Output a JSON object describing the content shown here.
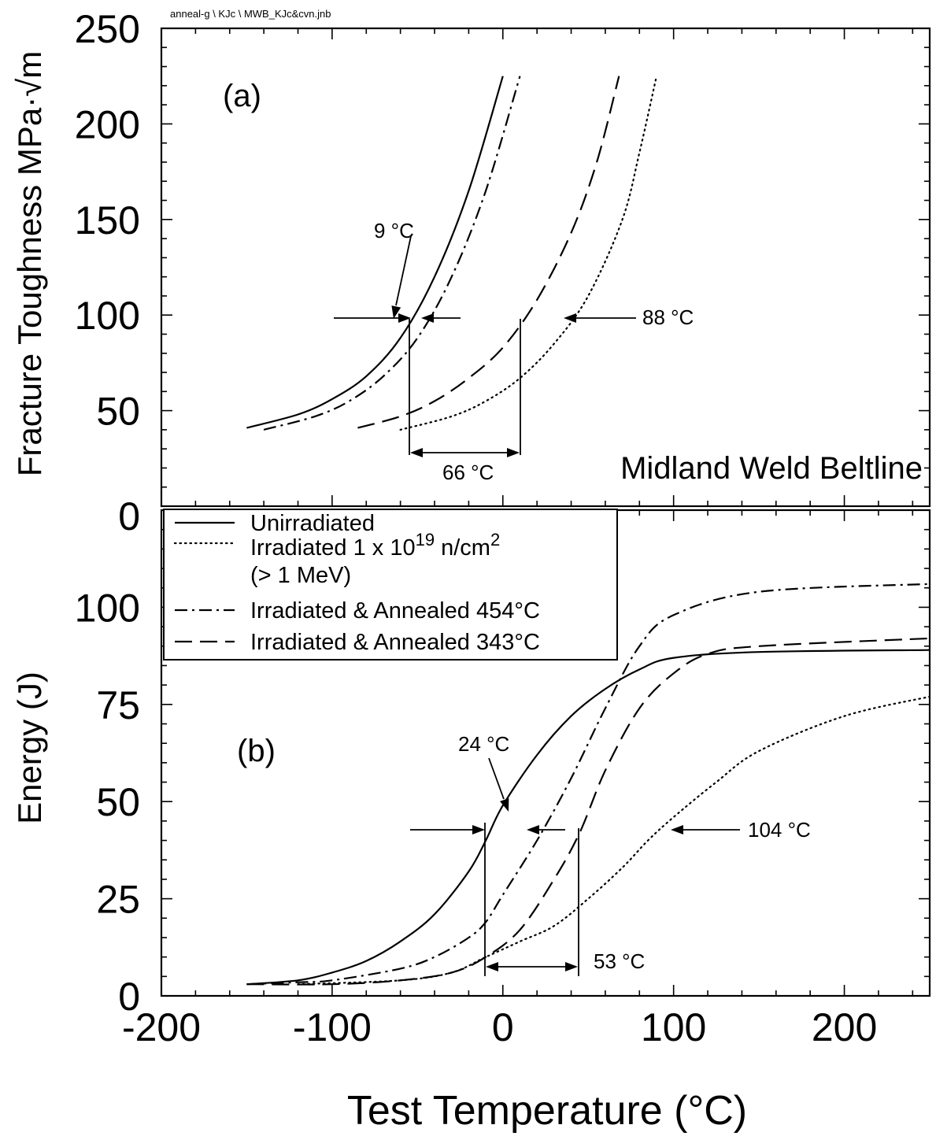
{
  "file_tag": "anneal-g \\ KJc \\ MWB_KJc&cvn.jnb",
  "xlabel": "Test Temperature  (°C)",
  "x_ticks": [
    -200,
    -100,
    0,
    100,
    200
  ],
  "legend": {
    "entries": [
      {
        "series": "unirradiated",
        "label": "Unirradiated"
      },
      {
        "series": "irradiated",
        "label_parts": [
          "Irradiated 1 x 10",
          "19",
          " n/cm",
          "2"
        ],
        "label_line2": "(> 1 MeV)"
      },
      {
        "series": "annealed_454",
        "label": "Irradiated & Annealed 454°C"
      },
      {
        "series": "annealed_343",
        "label": "Irradiated & Annealed 343°C"
      }
    ]
  },
  "chart_data": [
    {
      "panel": "(a)",
      "type": "line",
      "title": "Midland Weld Beltline",
      "panel_label": "(a)",
      "xlabel": "Test Temperature  (°C)",
      "ylabel": "Fracture Toughness MPa·√m",
      "xlim": [
        -200,
        250
      ],
      "ylim": [
        0,
        250
      ],
      "y_ticks": [
        0,
        50,
        100,
        150,
        200,
        250
      ],
      "grid": false,
      "series": [
        {
          "id": "unirradiated",
          "style": "solid",
          "x": [
            -150,
            -120,
            -100,
            -80,
            -60,
            -40,
            -20,
            0
          ],
          "y": [
            41,
            48,
            56,
            68,
            88,
            120,
            165,
            225
          ]
        },
        {
          "id": "annealed_454",
          "style": "dashdot",
          "x": [
            -140,
            -110,
            -90,
            -70,
            -50,
            -30,
            -10,
            10
          ],
          "y": [
            40,
            47,
            55,
            68,
            88,
            120,
            165,
            225
          ]
        },
        {
          "id": "annealed_343",
          "style": "dashed",
          "x": [
            -85,
            -60,
            -40,
            -20,
            0,
            20,
            40,
            55,
            68
          ],
          "y": [
            41,
            47,
            55,
            67,
            83,
            108,
            143,
            180,
            225
          ]
        },
        {
          "id": "irradiated",
          "style": "dotted",
          "x": [
            -60,
            -30,
            -10,
            10,
            30,
            50,
            70,
            80,
            90
          ],
          "y": [
            40,
            47,
            55,
            67,
            85,
            110,
            150,
            185,
            225
          ]
        }
      ],
      "annotations": [
        {
          "text": "9 °C"
        },
        {
          "text": "88 °C"
        },
        {
          "text": "66 °C"
        }
      ]
    },
    {
      "panel": "(b)",
      "type": "line",
      "panel_label": "(b)",
      "xlabel": "Test Temperature  (°C)",
      "ylabel": "Energy (J)",
      "xlim": [
        -200,
        250
      ],
      "ylim": [
        0,
        125
      ],
      "y_ticks": [
        0,
        25,
        50,
        75,
        100
      ],
      "grid": false,
      "series": [
        {
          "id": "unirradiated",
          "style": "solid",
          "x": [
            -150,
            -120,
            -100,
            -80,
            -60,
            -40,
            -20,
            -10,
            0,
            20,
            40,
            60,
            80,
            100,
            150,
            250
          ],
          "y": [
            3,
            4,
            6,
            9,
            14,
            21,
            32,
            40,
            49,
            62,
            72,
            79,
            84,
            87,
            88.5,
            89
          ]
        },
        {
          "id": "annealed_454",
          "style": "dashdot",
          "x": [
            -150,
            -120,
            -100,
            -60,
            -40,
            -20,
            -10,
            0,
            20,
            40,
            60,
            80,
            100,
            150,
            250
          ],
          "y": [
            3,
            3.5,
            4,
            7,
            10,
            15,
            19,
            26,
            40,
            56,
            74,
            90,
            98,
            104,
            106
          ]
        },
        {
          "id": "annealed_343",
          "style": "dashed",
          "x": [
            -150,
            -100,
            -60,
            -30,
            -10,
            10,
            30,
            45,
            60,
            80,
            100,
            120,
            150,
            250
          ],
          "y": [
            3,
            3,
            4,
            6,
            10,
            17,
            30,
            42,
            58,
            74,
            83,
            88,
            90,
            92
          ]
        },
        {
          "id": "irradiated",
          "style": "dotted",
          "x": [
            -120,
            -60,
            -30,
            -10,
            10,
            30,
            50,
            70,
            85,
            100,
            125,
            150,
            200,
            250
          ],
          "y": [
            3,
            4,
            6,
            10,
            14,
            18,
            25,
            33,
            40,
            46,
            55,
            63,
            72,
            77
          ]
        }
      ],
      "annotations": [
        {
          "text": "24 °C"
        },
        {
          "text": "104 °C"
        },
        {
          "text": "53 °C"
        }
      ]
    }
  ]
}
